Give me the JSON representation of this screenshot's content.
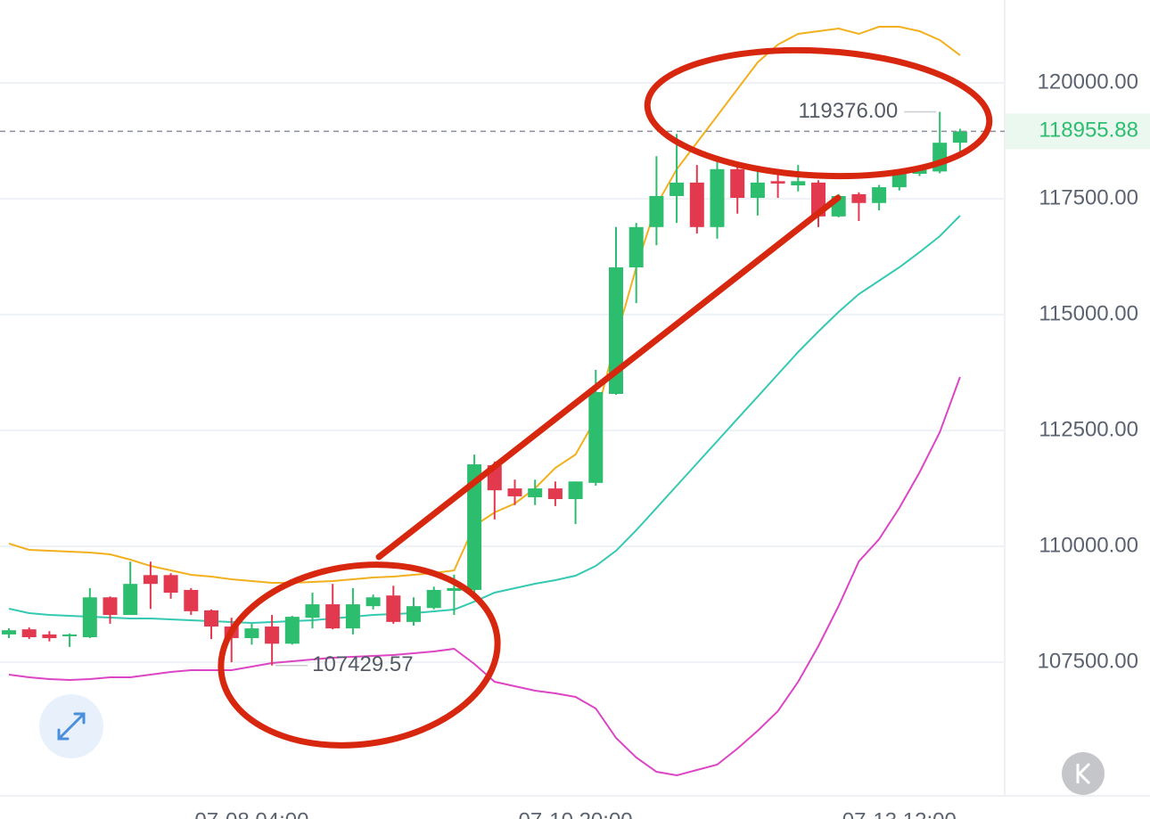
{
  "chart_data": {
    "type": "candlestick",
    "categories": [
      null,
      null,
      null,
      null,
      null,
      null,
      null,
      null,
      null,
      null,
      null,
      null,
      "07-08 04:00",
      null,
      null,
      null,
      null,
      null,
      null,
      null,
      null,
      null,
      null,
      null,
      null,
      null,
      null,
      null,
      "07-10 20:00",
      null,
      null,
      null,
      null,
      null,
      null,
      null,
      null,
      null,
      null,
      null,
      null,
      null,
      null,
      null,
      "07-13 12:00",
      null,
      null,
      null
    ],
    "open": [
      108100,
      108210,
      108100,
      108060,
      108040,
      108900,
      108520,
      109380,
      109380,
      109060,
      108620,
      108270,
      108020,
      108270,
      107900,
      108460,
      108750,
      108230,
      108710,
      108940,
      108370,
      108670,
      109040,
      109060,
      111750,
      111250,
      111060,
      111250,
      111020,
      111370,
      113290,
      116020,
      116890,
      117560,
      117850,
      116890,
      118140,
      117520,
      117880,
      117790,
      117850,
      117120,
      117600,
      117410,
      117750,
      118040,
      118090,
      118710
    ],
    "high": [
      108230,
      108250,
      108170,
      108120,
      109100,
      108920,
      109670,
      109670,
      109420,
      109100,
      108640,
      108460,
      108330,
      108520,
      108500,
      109000,
      109190,
      109100,
      108960,
      109150,
      108900,
      109130,
      109390,
      111980,
      111830,
      111440,
      111440,
      111400,
      111400,
      113810,
      116890,
      116980,
      118420,
      118900,
      118230,
      118330,
      118230,
      118140,
      118140,
      118230,
      117900,
      117600,
      117640,
      117800,
      118100,
      118160,
      119376,
      119010
    ],
    "low": [
      108020,
      108000,
      107950,
      107830,
      108020,
      108330,
      108520,
      108650,
      108870,
      108520,
      108000,
      107500,
      107880,
      107429.57,
      107880,
      108230,
      108210,
      108100,
      108640,
      108330,
      108290,
      108640,
      108520,
      109000,
      110580,
      110890,
      110890,
      110870,
      110480,
      111310,
      113270,
      115250,
      116500,
      116980,
      116750,
      116640,
      117180,
      117140,
      117520,
      117660,
      116890,
      117100,
      117020,
      117250,
      117680,
      117990,
      118050,
      118420
    ],
    "close": [
      108190,
      108040,
      108020,
      108100,
      108900,
      108520,
      109190,
      109190,
      109000,
      108600,
      108270,
      108020,
      108230,
      107900,
      108480,
      108750,
      108230,
      108750,
      108900,
      108370,
      108710,
      109060,
      109100,
      111770,
      111210,
      111080,
      111250,
      111020,
      111400,
      113330,
      116020,
      116890,
      117560,
      117850,
      116890,
      118140,
      117520,
      117850,
      117830,
      117880,
      117120,
      117560,
      117410,
      117750,
      118040,
      118140,
      118710,
      118955.88
    ],
    "up_color": "#2dbd6e",
    "down_color": "#e2394f",
    "series": [
      {
        "color": "#f2b01e",
        "values": [
          110060,
          109925,
          109905,
          109886,
          109867,
          109828,
          109713,
          109578,
          109482,
          109386,
          109348,
          109290,
          109252,
          109213,
          109213,
          109232,
          109252,
          109290,
          109328,
          109348,
          109386,
          109425,
          109482,
          110444,
          110732,
          110925,
          111252,
          111694,
          111982,
          112752,
          114482,
          116021,
          117367,
          118136,
          118713,
          119290,
          119867,
          120444,
          120828,
          121059,
          121117,
          121175,
          121059,
          121213,
          121213,
          121117,
          120925,
          120598
        ]
      },
      {
        "color": "#35c9b2",
        "values": [
          108655,
          108559,
          108521,
          108502,
          108482,
          108463,
          108444,
          108444,
          108425,
          108405,
          108386,
          108367,
          108348,
          108367,
          108386,
          108405,
          108444,
          108482,
          108521,
          108540,
          108559,
          108598,
          108636,
          108809,
          109002,
          109098,
          109194,
          109271,
          109367,
          109578,
          109905,
          110348,
          110828,
          111309,
          111790,
          112271,
          112752,
          113232,
          113713,
          114194,
          114636,
          115059,
          115444,
          115732,
          116021,
          116348,
          116694,
          117136
        ]
      },
      {
        "color": "#dc45c4",
        "values": [
          107232,
          107175,
          107136,
          107117,
          107136,
          107175,
          107175,
          107232,
          107290,
          107328,
          107328,
          107328,
          107405,
          107482,
          107521,
          107559,
          107598,
          107617,
          107636,
          107655,
          107694,
          107732,
          107790,
          107463,
          107078,
          106982,
          106886,
          106828,
          106752,
          106502,
          105867,
          105444,
          105136,
          105059,
          105175,
          105290,
          105636,
          106021,
          106444,
          107078,
          107848,
          108713,
          109675,
          110155,
          110828,
          111598,
          112463,
          113655
        ]
      }
    ],
    "ylim": [
      104617,
      121790
    ],
    "yticks": [
      {
        "value": 107500,
        "label": "107500.00"
      },
      {
        "value": 110000,
        "label": "110000.00"
      },
      {
        "value": 112500,
        "label": "112500.00"
      },
      {
        "value": 115000,
        "label": "115000.00"
      },
      {
        "value": 117500,
        "label": "117500.00"
      },
      {
        "value": 120000,
        "label": "120000.00"
      }
    ],
    "grid": true,
    "last_price": {
      "value": 118955.88,
      "label": "118955.88"
    },
    "annotations": [
      {
        "value": 119376,
        "label": "119376.00"
      },
      {
        "value": 107429.57,
        "label": "107429.57"
      }
    ]
  }
}
